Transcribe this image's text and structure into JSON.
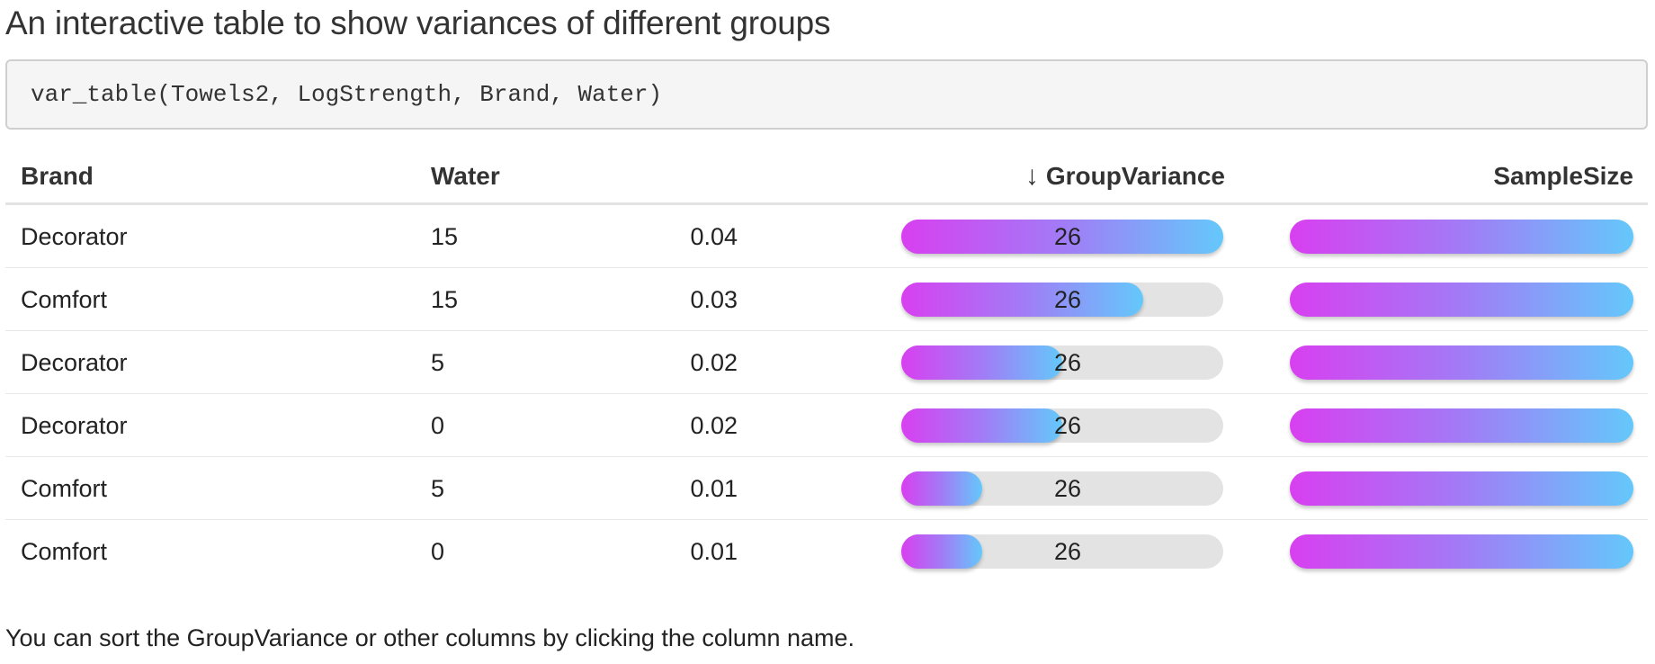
{
  "heading": "An interactive table to show variances of different groups",
  "code": "var_table(Towels2, LogStrength, Brand, Water)",
  "table": {
    "columns": {
      "brand": "Brand",
      "water": "Water",
      "variance": "GroupVariance",
      "sample_size": "SampleSize"
    },
    "sort_indicator": "↓",
    "variance_max": 0.04,
    "sample_size_max": 26,
    "rows": [
      {
        "brand": "Decorator",
        "water": "15",
        "variance": "0.04",
        "variance_fraction": 1.0,
        "sample_size": "26",
        "size_fraction": 1.0
      },
      {
        "brand": "Comfort",
        "water": "15",
        "variance": "0.03",
        "variance_fraction": 0.75,
        "sample_size": "26",
        "size_fraction": 1.0
      },
      {
        "brand": "Decorator",
        "water": "5",
        "variance": "0.02",
        "variance_fraction": 0.5,
        "sample_size": "26",
        "size_fraction": 1.0
      },
      {
        "brand": "Decorator",
        "water": "0",
        "variance": "0.02",
        "variance_fraction": 0.5,
        "sample_size": "26",
        "size_fraction": 1.0
      },
      {
        "brand": "Comfort",
        "water": "5",
        "variance": "0.01",
        "variance_fraction": 0.25,
        "sample_size": "26",
        "size_fraction": 1.0
      },
      {
        "brand": "Comfort",
        "water": "0",
        "variance": "0.01",
        "variance_fraction": 0.25,
        "sample_size": "26",
        "size_fraction": 1.0
      }
    ]
  },
  "note": "You can sort the GroupVariance or other columns by clicking the column name.",
  "colors": {
    "bar_start": "#d83ff0",
    "bar_mid": "#a27bf6",
    "bar_end": "#64c8fb",
    "bar_track": "#e3e3e3"
  }
}
